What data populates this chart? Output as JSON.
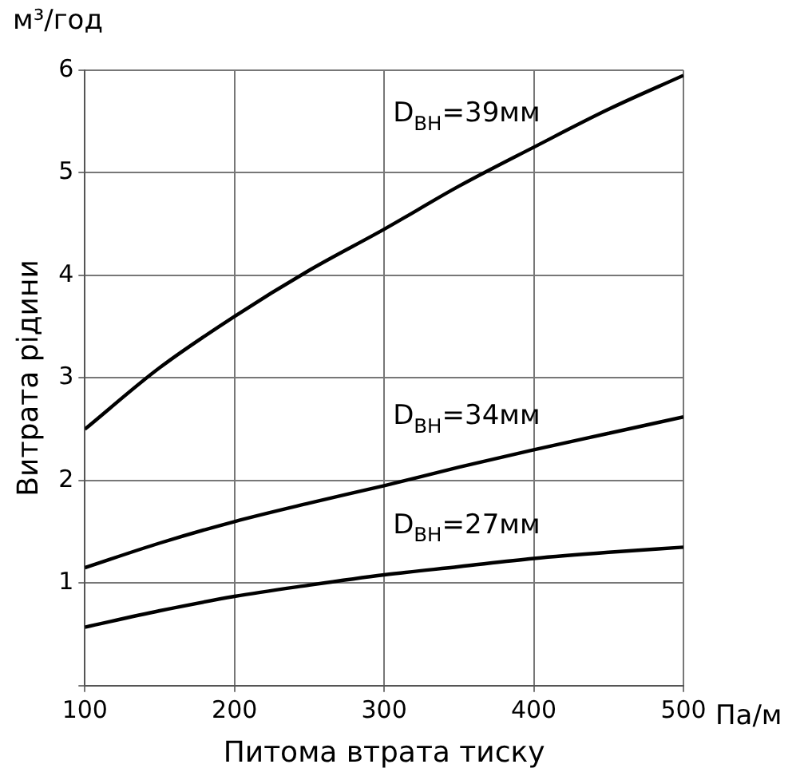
{
  "chart_data": {
    "type": "line",
    "xlabel": "Питома втрата тиску",
    "ylabel": "Витрата рідини",
    "annotations": [
      "м³/год",
      "Па/м"
    ],
    "x": [
      100,
      150,
      200,
      250,
      300,
      350,
      400,
      450,
      500
    ],
    "series": [
      {
        "name": "D$_{ВН}$=39мм",
        "color": "#000000",
        "values": [
          2.5,
          3.1,
          3.6,
          4.05,
          4.45,
          4.87,
          5.25,
          5.62,
          5.95
        ]
      },
      {
        "name": "D$_{ВН}$=34мм",
        "color": "#000000",
        "values": [
          1.15,
          1.39,
          1.6,
          1.78,
          1.95,
          2.13,
          2.3,
          2.46,
          2.62
        ]
      },
      {
        "name": "D$_{ВН}$=27мм",
        "color": "#000000",
        "values": [
          0.57,
          0.73,
          0.87,
          0.98,
          1.08,
          1.16,
          1.24,
          1.3,
          1.35
        ]
      }
    ],
    "xlim": [
      100,
      500
    ],
    "xticks": [
      100,
      200,
      300,
      400,
      500
    ],
    "ylim": [
      0,
      6
    ],
    "yticks": [
      {
        "value": 0,
        "label": null
      },
      1,
      2,
      3,
      4,
      5,
      6
    ],
    "grid": true,
    "legend": false,
    "marker": "none",
    "line_style": "solid"
  }
}
